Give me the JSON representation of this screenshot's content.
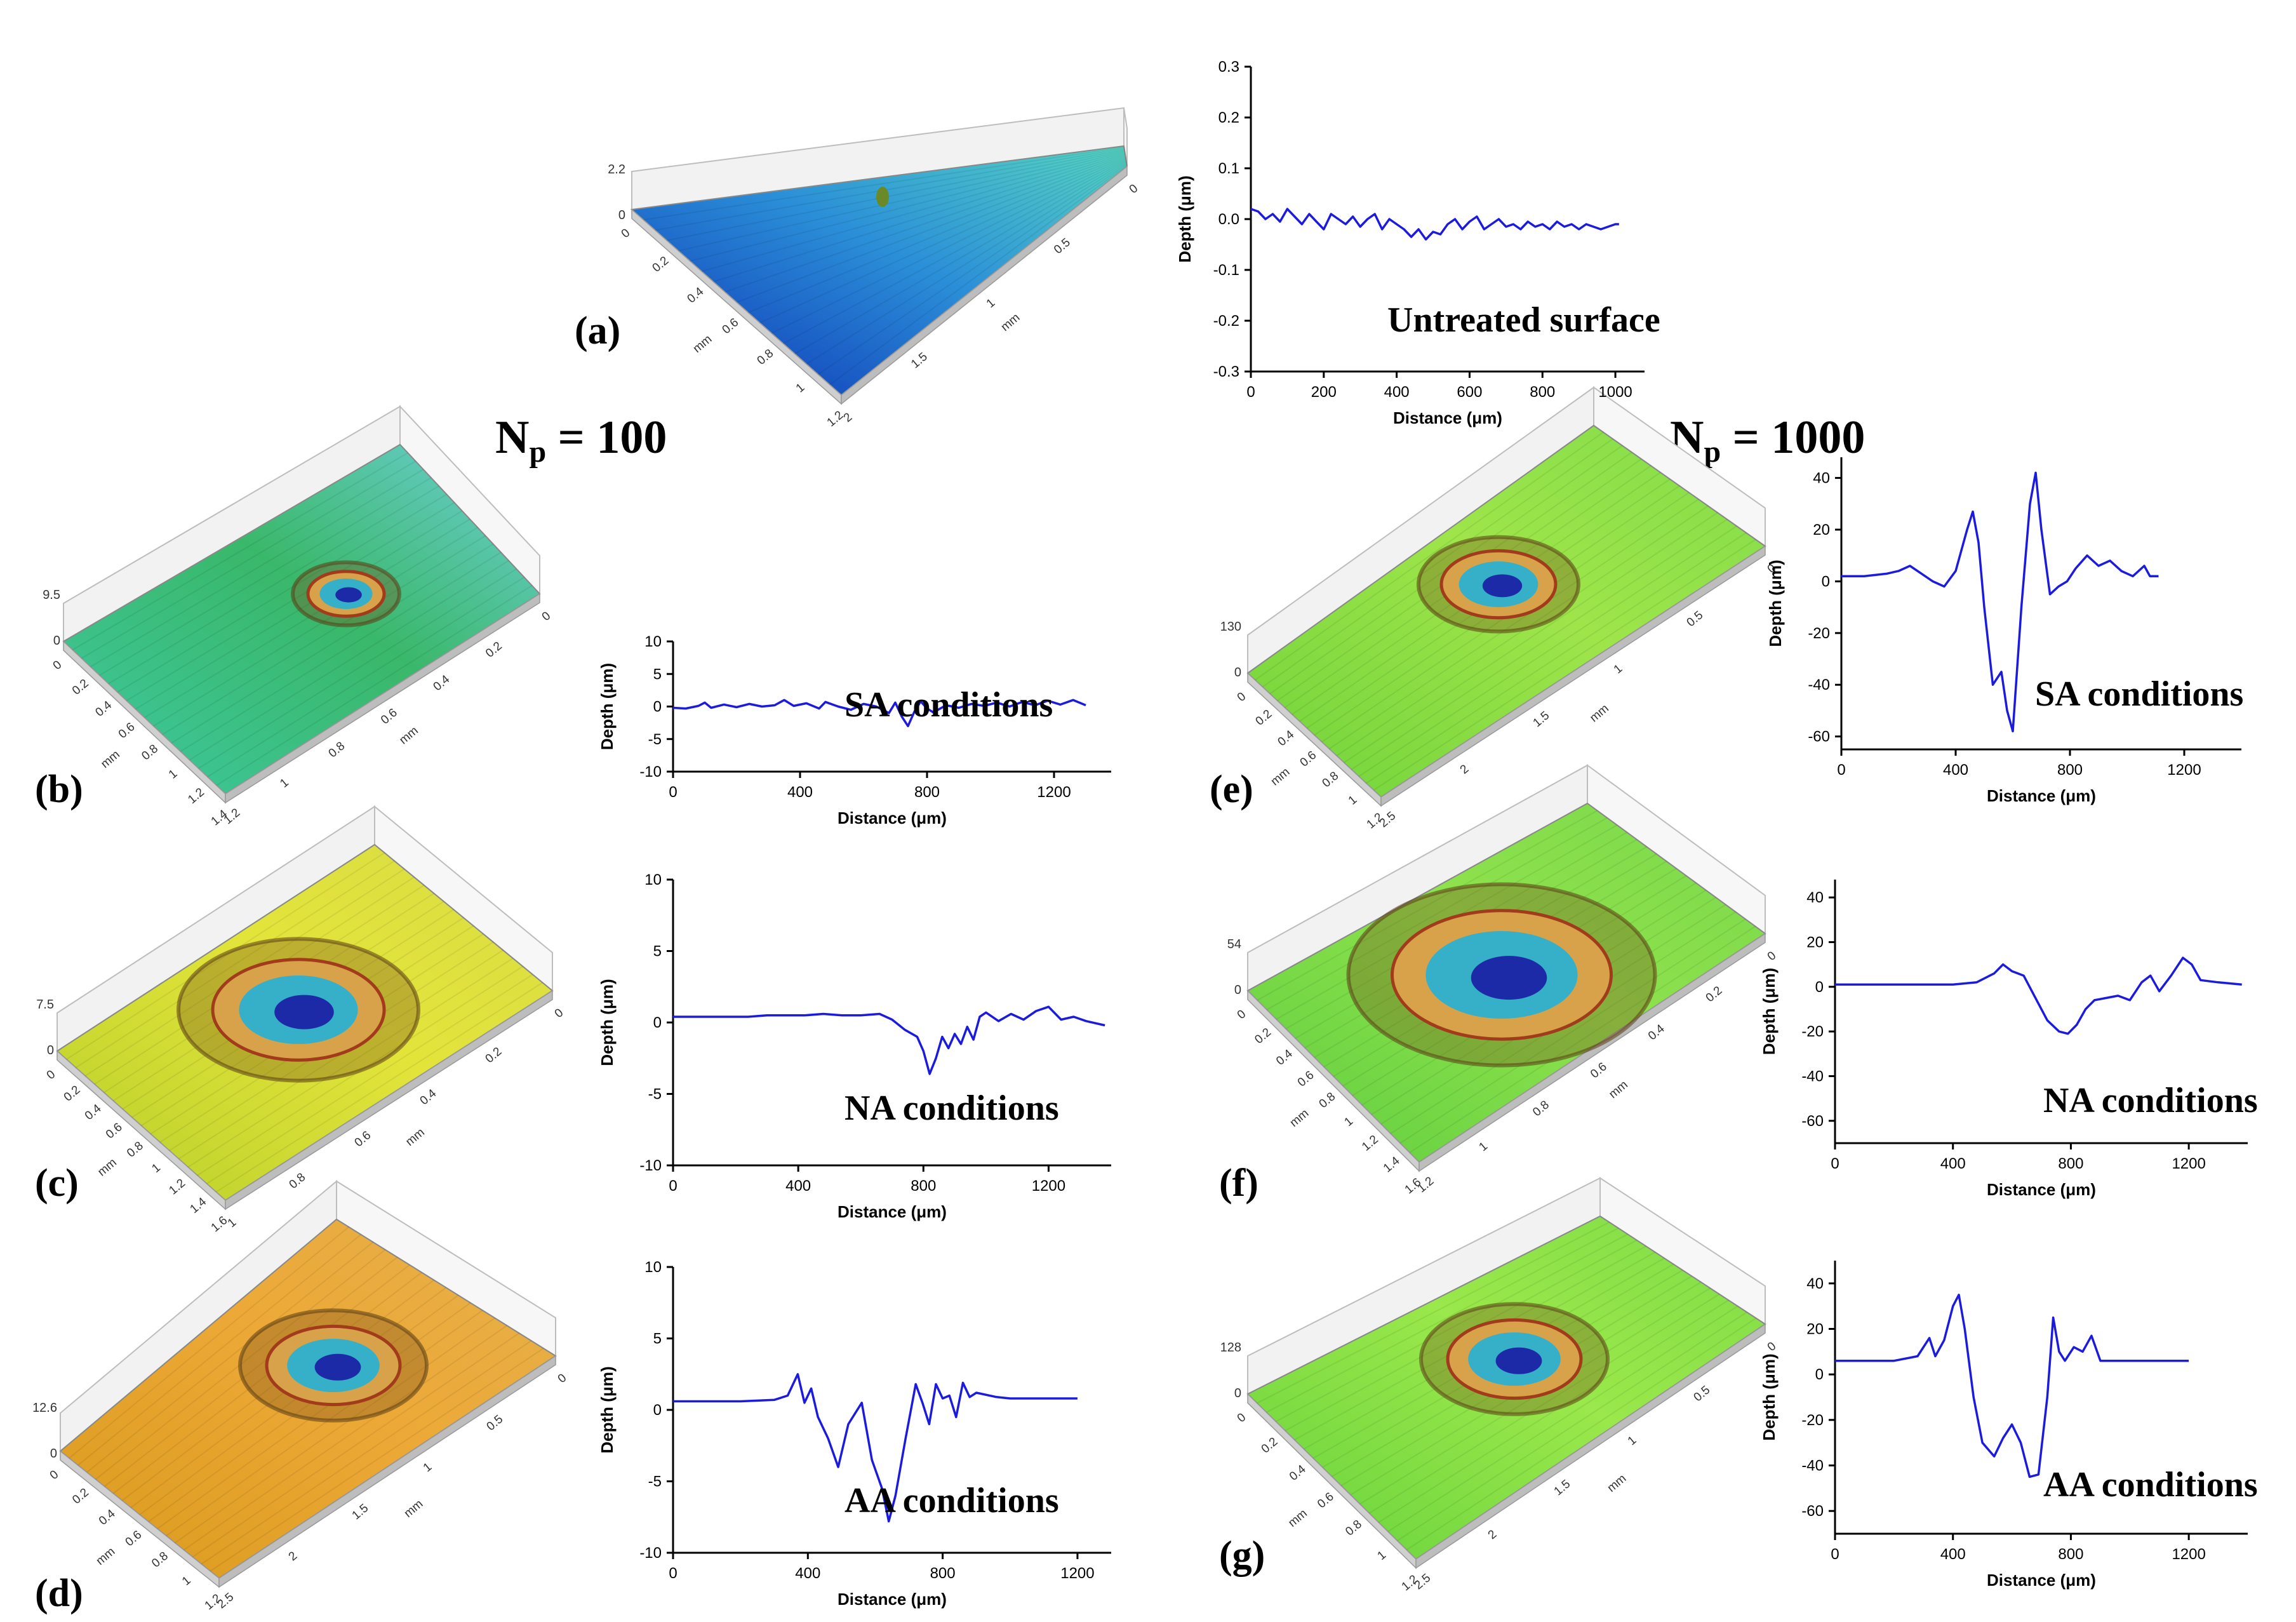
{
  "panels": {
    "a": "(a)",
    "b": "(b)",
    "c": "(c)",
    "d": "(d)",
    "e": "(e)",
    "f": "(f)",
    "g": "(g)"
  },
  "headers": {
    "np100_base": "N",
    "np100_sub": "p",
    "np100_rest": " = 100",
    "np1000_base": "N",
    "np1000_sub": "p",
    "np1000_rest": " = 1000"
  },
  "surfaces": {
    "a": {
      "z_top": "2.2",
      "z_zero": "0",
      "colors": [
        "#0b2fb4",
        "#2b8fd8",
        "#56d6c4"
      ],
      "ticks_front": [
        "0",
        "0.2",
        "0.4",
        "0.6",
        "0.8",
        "1",
        "1.2"
      ],
      "ticks_side": [
        "0",
        "0.5",
        "1",
        "1.5",
        "2"
      ],
      "unit_front": "mm",
      "unit_side": "mm"
    },
    "b": {
      "z_top": "9.5",
      "z_zero": "0",
      "colors": [
        "#3dc8a0",
        "#3ab86a",
        "#6fd0d8"
      ],
      "ticks_front": [
        "0",
        "0.2",
        "0.4",
        "0.6",
        "0.8",
        "1",
        "1.2",
        "1.4"
      ],
      "ticks_side": [
        "0",
        "0.2",
        "0.4",
        "0.6",
        "0.8",
        "1",
        "1.2"
      ],
      "unit_front": "mm",
      "unit_side": "mm"
    },
    "c": {
      "z_top": "7.5",
      "z_zero": "0",
      "colors": [
        "#b7cf2a",
        "#e3e43a",
        "#d9dc46"
      ],
      "ticks_front": [
        "0",
        "0.2",
        "0.4",
        "0.6",
        "0.8",
        "1",
        "1.2",
        "1.4",
        "1.6"
      ],
      "ticks_side": [
        "0",
        "0.2",
        "0.4",
        "0.6",
        "0.8",
        "1"
      ],
      "unit_front": "mm",
      "unit_side": "mm"
    },
    "d": {
      "z_top": "12.6",
      "z_zero": "0",
      "colors": [
        "#d99a1c",
        "#eda937",
        "#e5b04a"
      ],
      "ticks_front": [
        "0",
        "0.2",
        "0.4",
        "0.6",
        "0.8",
        "1",
        "1.2"
      ],
      "ticks_side": [
        "0",
        "0.5",
        "1",
        "1.5",
        "2",
        "2.5"
      ],
      "unit_front": "mm",
      "unit_side": "mm"
    },
    "e": {
      "z_top": "130",
      "z_zero": "0",
      "colors": [
        "#6fd33a",
        "#9ee54a",
        "#82dc49"
      ],
      "ticks_front": [
        "0",
        "0.2",
        "0.4",
        "0.6",
        "0.8",
        "1",
        "1.2"
      ],
      "ticks_side": [
        "0",
        "0.5",
        "1",
        "1.5",
        "2",
        "2.5"
      ],
      "unit_front": "mm",
      "unit_side": "mm"
    },
    "f": {
      "z_top": "54",
      "z_zero": "0",
      "colors": [
        "#5fce3e",
        "#8ee24d",
        "#7bd84a"
      ],
      "ticks_front": [
        "0",
        "0.2",
        "0.4",
        "0.6",
        "0.8",
        "1",
        "1.2",
        "1.4",
        "1.6"
      ],
      "ticks_side": [
        "0",
        "0.2",
        "0.4",
        "0.6",
        "0.8",
        "1",
        "1.2"
      ],
      "unit_front": "mm",
      "unit_side": "mm"
    },
    "g": {
      "z_top": "128",
      "z_zero": "0",
      "colors": [
        "#66d23c",
        "#9ae84b",
        "#7fdc46"
      ],
      "ticks_front": [
        "0",
        "0.2",
        "0.4",
        "0.6",
        "0.8",
        "1",
        "1.2"
      ],
      "ticks_side": [
        "0",
        "0.5",
        "1",
        "1.5",
        "2",
        "2.5"
      ],
      "unit_front": "mm",
      "unit_side": "mm"
    }
  },
  "chart_data": [
    {
      "id": "a",
      "type": "line",
      "title": "Untreated surface",
      "xlabel": "Distance (μm)",
      "ylabel": "Depth (μm)",
      "xlim": [
        0,
        1080
      ],
      "ylim": [
        -0.3,
        0.3
      ],
      "xticks": [
        "0",
        "200",
        "400",
        "600",
        "800",
        "1000"
      ],
      "yticks": [
        "-0.3",
        "-0.2",
        "-0.1",
        "0.0",
        "0.1",
        "0.2",
        "0.3"
      ],
      "x": [
        0,
        20,
        40,
        60,
        80,
        100,
        120,
        140,
        160,
        180,
        200,
        220,
        240,
        260,
        280,
        300,
        320,
        340,
        360,
        380,
        400,
        420,
        440,
        460,
        480,
        500,
        520,
        540,
        560,
        580,
        600,
        620,
        640,
        660,
        680,
        700,
        720,
        740,
        760,
        780,
        800,
        820,
        840,
        860,
        880,
        900,
        920,
        940,
        960,
        980,
        1000,
        1010
      ],
      "y": [
        0.02,
        0.015,
        0.0,
        0.01,
        -0.005,
        0.02,
        0.005,
        -0.01,
        0.01,
        -0.005,
        -0.02,
        0.01,
        0.0,
        -0.01,
        0.005,
        -0.015,
        0.0,
        0.01,
        -0.02,
        0.0,
        -0.01,
        -0.02,
        -0.035,
        -0.02,
        -0.04,
        -0.025,
        -0.03,
        -0.01,
        0.0,
        -0.02,
        -0.005,
        0.005,
        -0.02,
        -0.01,
        0.0,
        -0.015,
        -0.01,
        -0.02,
        -0.005,
        -0.015,
        -0.01,
        -0.02,
        -0.005,
        -0.015,
        -0.01,
        -0.02,
        -0.01,
        -0.015,
        -0.02,
        -0.015,
        -0.01,
        -0.01
      ]
    },
    {
      "id": "b",
      "type": "line",
      "title": "SA conditions",
      "xlabel": "Distance (μm)",
      "ylabel": "Depth (μm)",
      "xlim": [
        0,
        1380
      ],
      "ylim": [
        -10,
        10
      ],
      "xticks": [
        "0",
        "400",
        "800",
        "1200"
      ],
      "yticks": [
        "-10",
        "-5",
        "0",
        "5",
        "10"
      ],
      "x": [
        0,
        40,
        80,
        100,
        120,
        160,
        200,
        240,
        280,
        320,
        350,
        380,
        420,
        460,
        480,
        520,
        560,
        600,
        640,
        680,
        700,
        720,
        740,
        760,
        780,
        800,
        820,
        860,
        900,
        940,
        980,
        1020,
        1060,
        1100,
        1140,
        1180,
        1220,
        1260,
        1300
      ],
      "y": [
        -0.2,
        -0.3,
        0.1,
        0.6,
        -0.2,
        0.3,
        -0.1,
        0.4,
        0.0,
        0.2,
        1.0,
        0.1,
        0.5,
        -0.3,
        0.7,
        0.0,
        -0.5,
        0.4,
        0.0,
        -1.0,
        0.6,
        -1.5,
        -3.0,
        -0.8,
        0.8,
        -0.3,
        -0.9,
        0.2,
        -0.2,
        0.4,
        0.1,
        0.6,
        0.0,
        0.7,
        0.2,
        0.9,
        0.3,
        1.0,
        0.2
      ]
    },
    {
      "id": "c",
      "type": "line",
      "title": "NA conditions",
      "xlabel": "Distance (μm)",
      "ylabel": "Depth (μm)",
      "xlim": [
        0,
        1400
      ],
      "ylim": [
        -10,
        10
      ],
      "xticks": [
        "0",
        "400",
        "800",
        "1200"
      ],
      "yticks": [
        "-10",
        "-5",
        "0",
        "5",
        "10"
      ],
      "x": [
        0,
        60,
        120,
        180,
        240,
        300,
        360,
        420,
        480,
        540,
        600,
        660,
        700,
        740,
        780,
        800,
        820,
        840,
        860,
        880,
        900,
        920,
        940,
        960,
        980,
        1000,
        1040,
        1080,
        1120,
        1160,
        1200,
        1240,
        1280,
        1320,
        1380
      ],
      "y": [
        0.4,
        0.4,
        0.4,
        0.4,
        0.4,
        0.5,
        0.5,
        0.5,
        0.6,
        0.5,
        0.5,
        0.6,
        0.2,
        -0.5,
        -1.0,
        -2.0,
        -3.6,
        -2.5,
        -1.0,
        -1.8,
        -0.8,
        -1.5,
        -0.3,
        -1.2,
        0.4,
        0.7,
        0.1,
        0.6,
        0.2,
        0.8,
        1.1,
        0.2,
        0.4,
        0.1,
        -0.2
      ]
    },
    {
      "id": "d",
      "type": "line",
      "title": "AA conditions",
      "xlabel": "Distance (μm)",
      "ylabel": "Depth (μm)",
      "xlim": [
        0,
        1300
      ],
      "ylim": [
        -10,
        10
      ],
      "xticks": [
        "0",
        "400",
        "800",
        "1200"
      ],
      "yticks": [
        "-10",
        "-5",
        "0",
        "5",
        "10"
      ],
      "x": [
        0,
        100,
        200,
        300,
        340,
        370,
        390,
        410,
        430,
        460,
        490,
        520,
        560,
        590,
        620,
        640,
        660,
        690,
        720,
        740,
        760,
        780,
        800,
        820,
        840,
        860,
        880,
        900,
        960,
        1000,
        1100,
        1200
      ],
      "y": [
        0.6,
        0.6,
        0.6,
        0.7,
        1.0,
        2.5,
        0.5,
        1.5,
        -0.5,
        -2.0,
        -4.0,
        -1.0,
        0.5,
        -3.5,
        -5.5,
        -7.8,
        -6.0,
        -2.0,
        1.8,
        0.5,
        -1.0,
        1.8,
        0.8,
        1.0,
        -0.5,
        1.9,
        0.9,
        1.2,
        0.9,
        0.8,
        0.8,
        0.8
      ]
    },
    {
      "id": "e",
      "type": "line",
      "title": "SA conditions",
      "xlabel": "Distance (μm)",
      "ylabel": "Depth (μm)",
      "xlim": [
        0,
        1400
      ],
      "ylim": [
        -65,
        48
      ],
      "xticks": [
        "0",
        "400",
        "800",
        "1200"
      ],
      "yticks": [
        "-60",
        "-40",
        "-20",
        "0",
        "20",
        "40"
      ],
      "x": [
        0,
        80,
        160,
        200,
        240,
        280,
        320,
        360,
        400,
        440,
        460,
        480,
        500,
        530,
        560,
        580,
        600,
        630,
        660,
        680,
        700,
        730,
        760,
        790,
        820,
        860,
        900,
        940,
        980,
        1020,
        1060,
        1080,
        1110
      ],
      "y": [
        2,
        2,
        3,
        4,
        6,
        3,
        0,
        -2,
        4,
        20,
        27,
        15,
        -10,
        -40,
        -35,
        -50,
        -58,
        -10,
        30,
        42,
        20,
        -5,
        -2,
        0,
        5,
        10,
        6,
        8,
        4,
        2,
        6,
        2,
        2
      ]
    },
    {
      "id": "f",
      "type": "line",
      "title": "NA conditions",
      "xlabel": "Distance (μm)",
      "ylabel": "Depth (μm)",
      "xlim": [
        0,
        1400
      ],
      "ylim": [
        -70,
        48
      ],
      "xticks": [
        "0",
        "400",
        "800",
        "1200"
      ],
      "yticks": [
        "-60",
        "-40",
        "-20",
        "0",
        "20",
        "40"
      ],
      "x": [
        0,
        100,
        200,
        300,
        400,
        480,
        540,
        570,
        600,
        640,
        680,
        720,
        760,
        790,
        820,
        850,
        880,
        920,
        960,
        1000,
        1040,
        1070,
        1100,
        1140,
        1180,
        1210,
        1240,
        1300,
        1380
      ],
      "y": [
        1,
        1,
        1,
        1,
        1,
        2,
        6,
        10,
        7,
        5,
        -5,
        -15,
        -20,
        -21,
        -17,
        -10,
        -6,
        -5,
        -4,
        -6,
        2,
        5,
        -2,
        5,
        13,
        10,
        3,
        2,
        1
      ]
    },
    {
      "id": "g",
      "type": "line",
      "title": "AA conditions",
      "xlabel": "Distance (μm)",
      "ylabel": "Depth (μm)",
      "xlim": [
        0,
        1400
      ],
      "ylim": [
        -70,
        50
      ],
      "xticks": [
        "0",
        "400",
        "800",
        "1200"
      ],
      "yticks": [
        "-60",
        "-40",
        "-20",
        "0",
        "20",
        "40"
      ],
      "x": [
        0,
        100,
        200,
        280,
        320,
        340,
        370,
        400,
        420,
        440,
        470,
        500,
        540,
        570,
        600,
        630,
        660,
        690,
        720,
        740,
        760,
        780,
        810,
        840,
        870,
        900,
        1000,
        1100,
        1200
      ],
      "y": [
        6,
        6,
        6,
        8,
        16,
        8,
        15,
        30,
        35,
        20,
        -10,
        -30,
        -36,
        -28,
        -22,
        -30,
        -45,
        -44,
        -10,
        25,
        10,
        6,
        12,
        10,
        17,
        6,
        6,
        6,
        6
      ]
    }
  ]
}
